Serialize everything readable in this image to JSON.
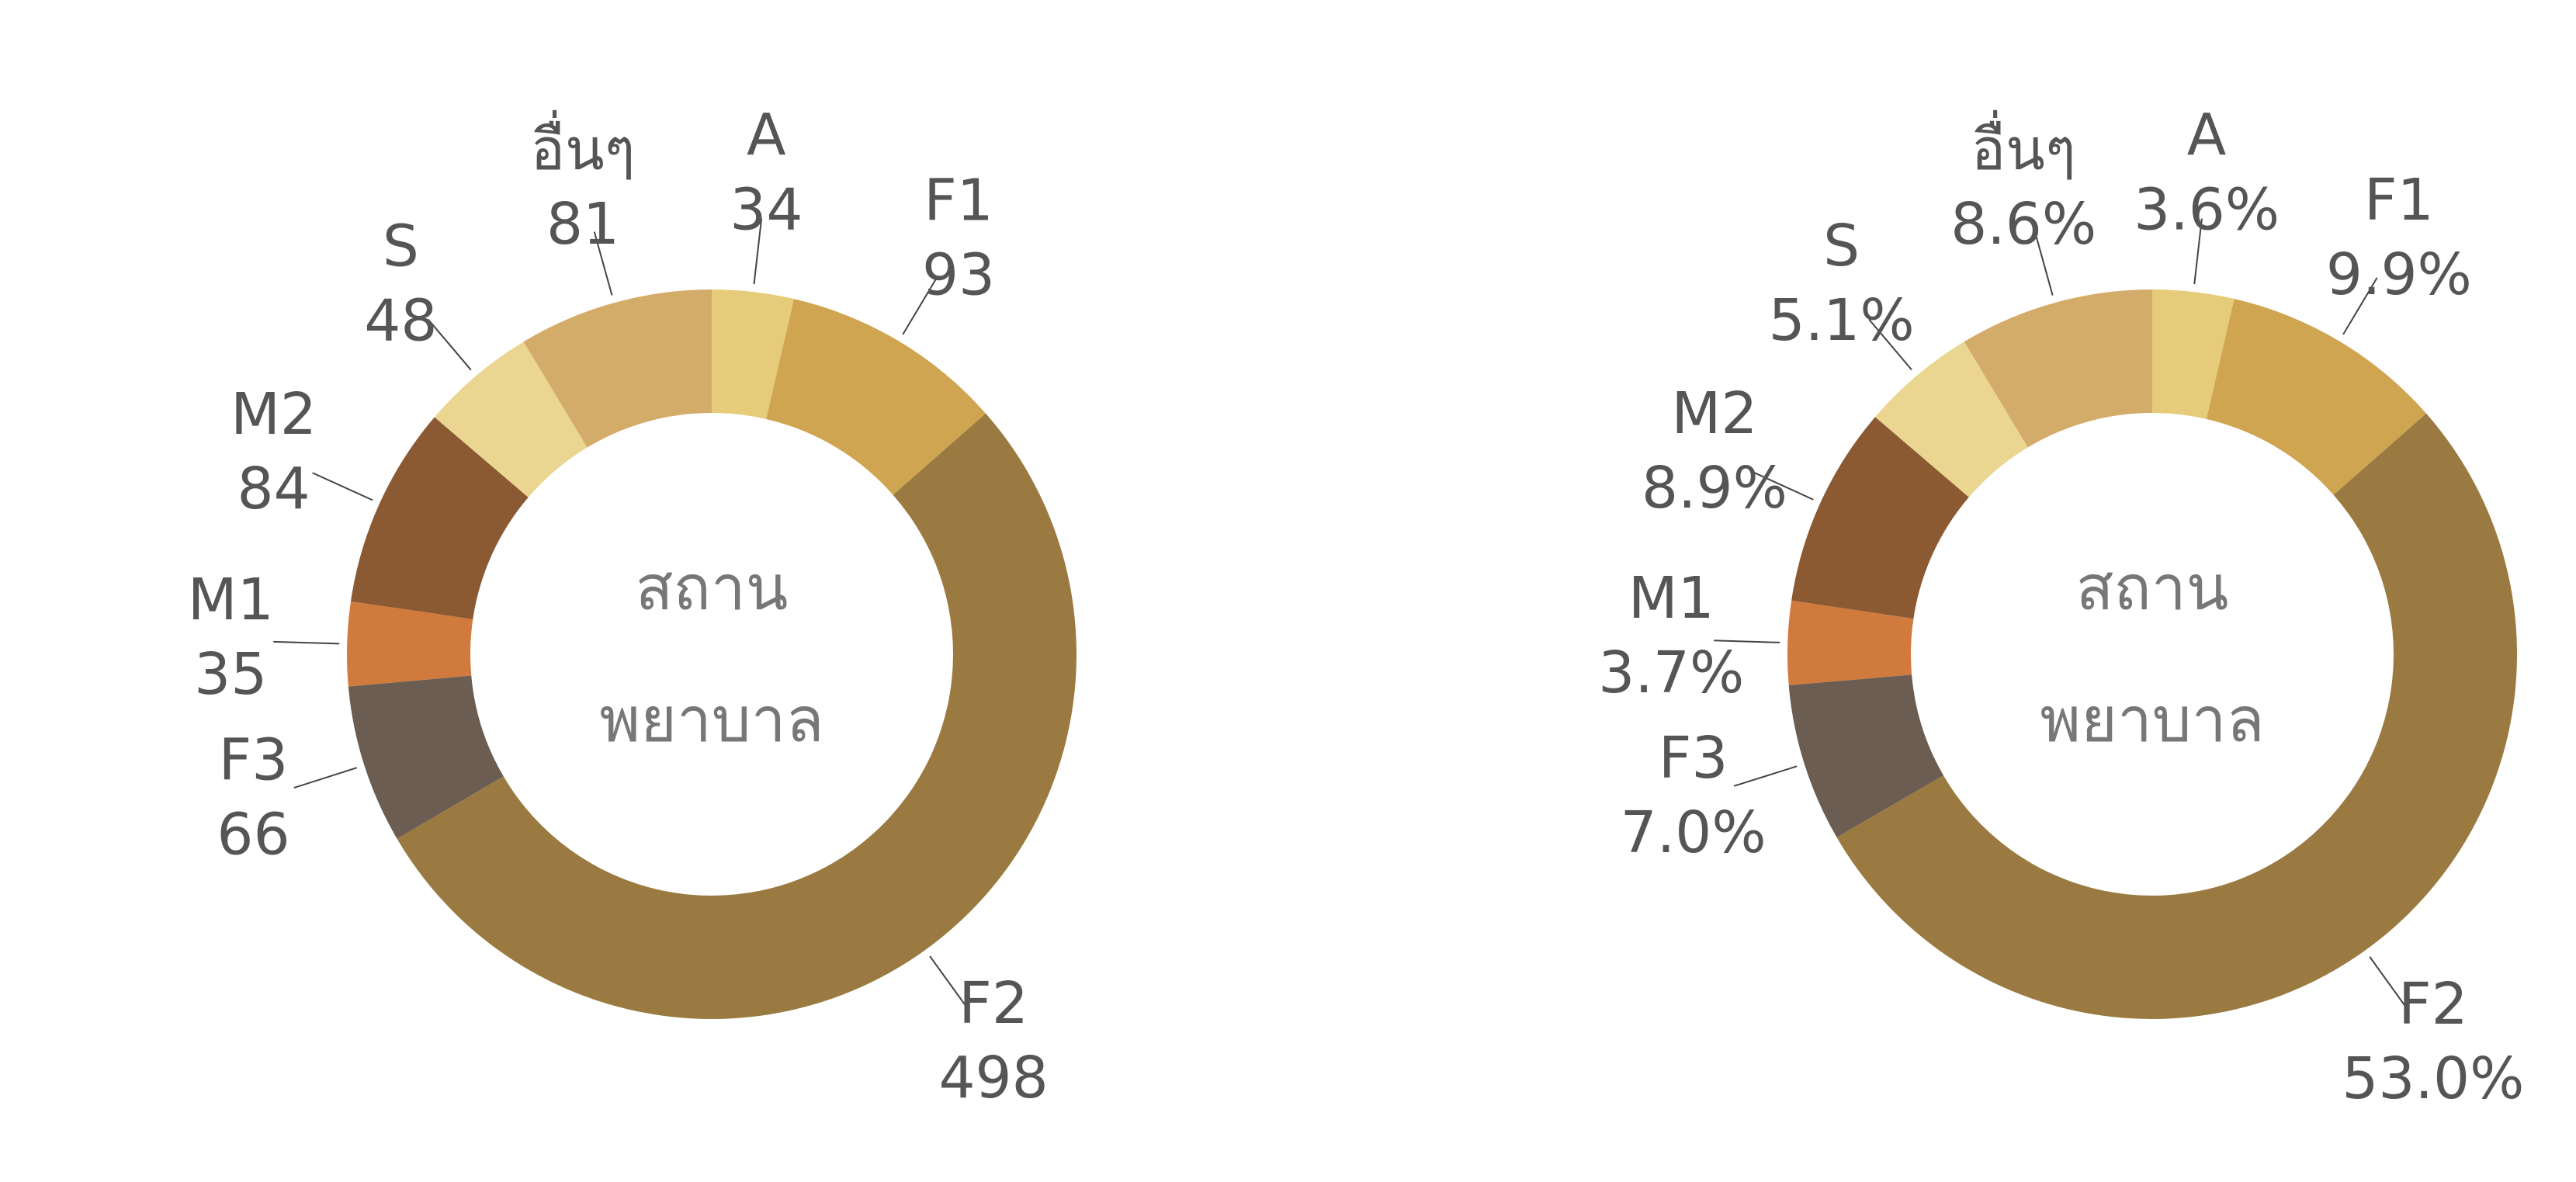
{
  "chart_data": [
    {
      "type": "donut",
      "title": "สถาน พยาบาล",
      "categories": [
        "A",
        "F1",
        "F2",
        "F3",
        "M1",
        "M2",
        "S",
        "อื่นๆ"
      ],
      "values": [
        34,
        93,
        498,
        66,
        35,
        84,
        48,
        81
      ],
      "colors": [
        "#e6cc7a",
        "#cfa552",
        "#9a7a40",
        "#6b5d52",
        "#d07a3e",
        "#8b5a32",
        "#ead591",
        "#d4ac6a"
      ]
    },
    {
      "type": "donut",
      "title": "สถาน พยาบาล",
      "categories": [
        "A",
        "F1",
        "F2",
        "F3",
        "M1",
        "M2",
        "S",
        "อื่นๆ"
      ],
      "values": [
        3.6,
        9.9,
        53.0,
        7.0,
        3.7,
        8.9,
        5.1,
        8.6
      ],
      "value_labels": [
        "3.6%",
        "9.9%",
        "53.0%",
        "7.0%",
        "3.7%",
        "8.9%",
        "5.1%",
        "8.6%"
      ],
      "colors": [
        "#e6cc7a",
        "#cfa552",
        "#9a7a40",
        "#6b5d52",
        "#d07a3e",
        "#8b5a32",
        "#ead591",
        "#d4ac6a"
      ]
    }
  ]
}
